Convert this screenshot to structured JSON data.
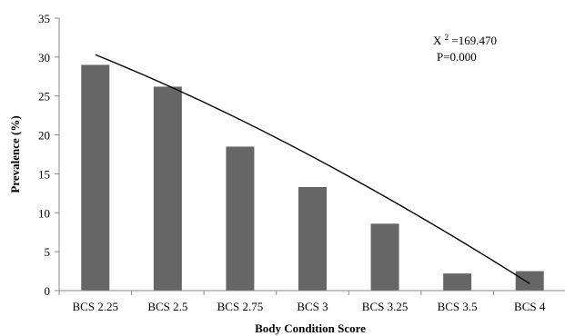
{
  "chart_data": {
    "type": "bar",
    "title": "",
    "xlabel": "Body Condition Score",
    "ylabel": "Prevalence (%)",
    "categories": [
      "BCS 2.25",
      "BCS 2.5",
      "BCS 2.75",
      "BCS 3",
      "BCS 3.25",
      "BCS 3.5",
      "BCS 4"
    ],
    "values": [
      29,
      26.2,
      18.5,
      13.3,
      8.6,
      2.2,
      2.5
    ],
    "ylim": [
      0,
      35
    ],
    "yticks": [
      0,
      5,
      10,
      15,
      20,
      25,
      30,
      35
    ],
    "grid": false,
    "bar_color": "#666666",
    "trendline": {
      "type": "polynomial",
      "start": 30.3,
      "end": 0.9,
      "color": "#000000"
    },
    "annotations": {
      "chi_label": "X",
      "chi_sup": "2",
      "chi_value": "=169.470",
      "p_value": "P=0.000"
    }
  }
}
